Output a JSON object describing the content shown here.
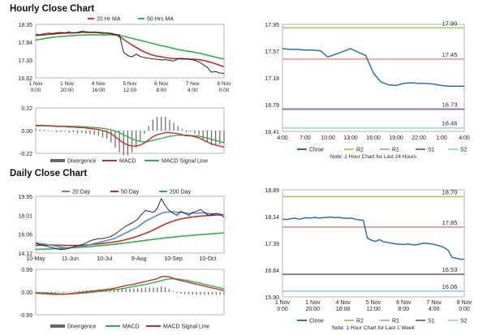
{
  "titles": {
    "hourly": "Hourly Close Chart",
    "daily": "Daily Close Chart"
  },
  "chart_data": [
    {
      "id": "hourly_price",
      "type": "line",
      "legend": [
        "20 Hr MA",
        "50 Hrs MA"
      ],
      "y_ticks": [
        "18.35",
        "17.84",
        "17.33",
        "16.82"
      ],
      "ylim": [
        16.82,
        18.35
      ],
      "x_ticks": [
        [
          "1 Nov",
          "0:00"
        ],
        [
          "1 Nov",
          "20:00"
        ],
        [
          "4 Nov",
          "16:00"
        ],
        [
          "5 Nov",
          "12:00"
        ],
        [
          "6 Nov",
          "8:00"
        ],
        [
          "7 Nov",
          "4:00"
        ],
        [
          "8 Nov",
          "0:00"
        ]
      ],
      "series": [
        {
          "name": "Close",
          "values": [
            18.07,
            18.05,
            18.08,
            18.1,
            18.09,
            18.11,
            18.12,
            18.11,
            18.13,
            18.1,
            18.12,
            18.15,
            18.14,
            18.12,
            18.13,
            18.11,
            18.09,
            18.1,
            18.08,
            18.06,
            18.05,
            17.55,
            17.46,
            17.42,
            17.5,
            17.43,
            17.4,
            17.38,
            17.36,
            17.35,
            17.33,
            17.34,
            17.32,
            17.3,
            17.37,
            17.38,
            17.36,
            17.35,
            17.32,
            17.28,
            17.2,
            17.12,
            16.98,
            17.0,
            16.96,
            16.95
          ]
        },
        {
          "name": "20 Hr MA",
          "values": [
            18.03,
            18.04,
            18.05,
            18.06,
            18.07,
            18.08,
            18.09,
            18.1,
            18.1,
            18.11,
            18.11,
            18.12,
            18.12,
            18.12,
            18.12,
            18.12,
            18.11,
            18.1,
            18.09,
            18.06,
            18.0,
            17.92,
            17.84,
            17.76,
            17.69,
            17.62,
            17.56,
            17.51,
            17.47,
            17.44,
            17.42,
            17.4,
            17.38,
            17.37,
            17.37,
            17.36,
            17.36,
            17.35,
            17.35,
            17.34,
            17.32,
            17.29,
            17.26,
            17.22,
            17.18,
            17.14
          ]
        },
        {
          "name": "50 Hrs MA",
          "values": [
            17.9,
            17.92,
            17.94,
            17.96,
            17.98,
            17.99,
            18.0,
            18.01,
            18.02,
            18.03,
            18.04,
            18.04,
            18.05,
            18.05,
            18.05,
            18.05,
            18.05,
            18.05,
            18.05,
            18.04,
            18.03,
            18.01,
            17.98,
            17.95,
            17.92,
            17.89,
            17.86,
            17.83,
            17.8,
            17.77,
            17.74,
            17.72,
            17.69,
            17.66,
            17.63,
            17.61,
            17.59,
            17.57,
            17.55,
            17.53,
            17.5,
            17.47,
            17.44,
            17.41,
            17.38,
            17.36
          ]
        }
      ]
    },
    {
      "id": "hourly_macd",
      "type": "line",
      "legend": [
        "Divergence",
        "MACD",
        "MACD Signal Line"
      ],
      "y_ticks": [
        "0.22",
        "0.00",
        "-0.22"
      ],
      "ylim": [
        -0.22,
        0.22
      ],
      "series": [
        {
          "name": "MACD",
          "values": [
            0.05,
            0.05,
            0.05,
            0.045,
            0.045,
            0.04,
            0.04,
            0.04,
            0.035,
            0.035,
            0.03,
            0.03,
            0.025,
            0.02,
            0.015,
            0.01,
            0.0,
            -0.01,
            -0.03,
            -0.06,
            -0.09,
            -0.12,
            -0.14,
            -0.15,
            -0.15,
            -0.14,
            -0.12,
            -0.09,
            -0.06,
            -0.04,
            -0.03,
            -0.02,
            -0.02,
            -0.025,
            -0.03,
            -0.04,
            -0.05,
            -0.05,
            -0.06,
            -0.07,
            -0.09,
            -0.11,
            -0.13,
            -0.14,
            -0.15,
            -0.16
          ]
        },
        {
          "name": "MACD Signal Line",
          "values": [
            0.045,
            0.046,
            0.047,
            0.047,
            0.046,
            0.045,
            0.044,
            0.043,
            0.042,
            0.04,
            0.039,
            0.037,
            0.035,
            0.032,
            0.029,
            0.026,
            0.022,
            0.016,
            0.008,
            -0.005,
            -0.02,
            -0.04,
            -0.06,
            -0.08,
            -0.095,
            -0.105,
            -0.11,
            -0.105,
            -0.095,
            -0.085,
            -0.075,
            -0.065,
            -0.055,
            -0.05,
            -0.045,
            -0.045,
            -0.045,
            -0.047,
            -0.05,
            -0.055,
            -0.062,
            -0.072,
            -0.083,
            -0.095,
            -0.105,
            -0.12
          ]
        }
      ]
    },
    {
      "id": "hourly_last24",
      "type": "line",
      "legend": [
        "Close",
        "R2",
        "R1",
        "S1",
        "S2"
      ],
      "y_ticks": [
        "17.95",
        "17.57",
        "17.18",
        "16.79",
        "16.41"
      ],
      "ylim": [
        16.41,
        17.95
      ],
      "x_ticks": [
        "4:00",
        "7:00",
        "10:00",
        "13:00",
        "16:00",
        "19:00",
        "22:00",
        "1:00",
        "4:00"
      ],
      "levels": [
        {
          "name": "R2",
          "value": 17.9,
          "label": "17.90",
          "color": "#a9d06b"
        },
        {
          "name": "R1",
          "value": 17.45,
          "label": "17.45",
          "color": "#e8a0a0"
        },
        {
          "name": "S1",
          "value": 16.73,
          "label": "16.73",
          "color": "#8a6f9e"
        },
        {
          "name": "S2",
          "value": 16.46,
          "label": "16.46",
          "color": "#9fd6e8"
        }
      ],
      "series": [
        {
          "name": "Close",
          "values": [
            17.6,
            17.59,
            17.59,
            17.58,
            17.58,
            17.57,
            17.48,
            17.52,
            17.56,
            17.6,
            17.55,
            17.5,
            17.25,
            17.12,
            17.08,
            17.07,
            17.1,
            17.11,
            17.1,
            17.1,
            17.09,
            17.07,
            17.06,
            17.06,
            17.06
          ]
        }
      ],
      "note": "Note: 1 Hour Chart for Last 24 Hours"
    },
    {
      "id": "daily_price",
      "type": "line",
      "legend": [
        "20 Day",
        "50 Day",
        "200 Day"
      ],
      "y_ticks": [
        "19.95",
        "18.01",
        "16.06",
        "14.12"
      ],
      "ylim": [
        14.12,
        19.95
      ],
      "x_ticks": [
        "10-May",
        "11-Jun",
        "10-Jul",
        "9-Aug",
        "10-Sep",
        "10-Oct"
      ],
      "series": [
        {
          "name": "Close",
          "values": [
            15.1,
            15.0,
            14.9,
            14.8,
            14.7,
            14.6,
            14.5,
            14.5,
            14.55,
            14.7,
            14.8,
            14.9,
            15.0,
            15.2,
            15.4,
            15.5,
            15.6,
            15.6,
            15.7,
            15.8,
            16.0,
            16.3,
            16.6,
            16.9,
            17.1,
            17.3,
            17.6,
            18.1,
            18.5,
            18.4,
            18.3,
            18.7,
            19.7,
            19.0,
            18.5,
            18.2,
            18.0,
            18.4,
            18.2,
            18.0,
            18.3,
            18.4,
            18.6,
            18.3,
            18.0,
            18.1,
            18.2,
            18.1,
            17.8
          ]
        },
        {
          "name": "20 Day",
          "values": [
            15.2,
            15.1,
            15.05,
            15.0,
            14.9,
            14.85,
            14.75,
            14.7,
            14.65,
            14.65,
            14.7,
            14.75,
            14.8,
            14.9,
            15.0,
            15.1,
            15.2,
            15.3,
            15.4,
            15.5,
            15.6,
            15.8,
            16.0,
            16.2,
            16.4,
            16.6,
            16.8,
            17.1,
            17.4,
            17.6,
            17.8,
            18.0,
            18.2,
            18.3,
            18.35,
            18.35,
            18.3,
            18.3,
            18.25,
            18.2,
            18.2,
            18.2,
            18.25,
            18.25,
            18.2,
            18.15,
            18.1,
            18.1,
            18.05
          ]
        },
        {
          "name": "50 Day",
          "values": [
            14.9,
            14.92,
            14.94,
            14.95,
            14.95,
            14.94,
            14.93,
            14.92,
            14.9,
            14.9,
            14.9,
            14.9,
            14.92,
            14.95,
            14.98,
            15.02,
            15.06,
            15.1,
            15.15,
            15.2,
            15.26,
            15.33,
            15.4,
            15.5,
            15.6,
            15.72,
            15.85,
            16.0,
            16.15,
            16.3,
            16.5,
            16.7,
            16.9,
            17.1,
            17.25,
            17.4,
            17.52,
            17.62,
            17.7,
            17.77,
            17.83,
            17.88,
            17.92,
            17.96,
            17.98,
            18.0,
            18.02,
            18.03,
            18.05
          ]
        },
        {
          "name": "200 Day",
          "values": [
            14.5,
            14.51,
            14.52,
            14.53,
            14.55,
            14.57,
            14.59,
            14.61,
            14.63,
            14.65,
            14.67,
            14.7,
            14.73,
            14.76,
            14.79,
            14.82,
            14.86,
            14.9,
            14.94,
            14.98,
            15.02,
            15.07,
            15.12,
            15.17,
            15.22,
            15.27,
            15.32,
            15.38,
            15.43,
            15.48,
            15.53,
            15.58,
            15.63,
            15.68,
            15.72,
            15.76,
            15.8,
            15.84,
            15.88,
            15.92,
            15.95,
            15.98,
            16.01,
            16.04,
            16.07,
            16.1,
            16.13,
            16.16,
            16.2
          ]
        }
      ]
    },
    {
      "id": "daily_macd",
      "type": "line",
      "legend": [
        "Divergence",
        "MACD",
        "MACD Signal Line"
      ],
      "y_ticks": [
        "0.99",
        "0.00",
        "-0.99"
      ],
      "ylim": [
        -0.99,
        0.99
      ],
      "series": [
        {
          "name": "MACD",
          "values": [
            -0.05,
            -0.06,
            -0.07,
            -0.08,
            -0.09,
            -0.1,
            -0.1,
            -0.1,
            -0.09,
            -0.07,
            -0.05,
            -0.03,
            -0.01,
            0.01,
            0.03,
            0.05,
            0.07,
            0.09,
            0.11,
            0.13,
            0.16,
            0.2,
            0.24,
            0.28,
            0.31,
            0.34,
            0.38,
            0.42,
            0.46,
            0.5,
            0.54,
            0.58,
            0.66,
            0.68,
            0.66,
            0.6,
            0.54,
            0.5,
            0.46,
            0.42,
            0.38,
            0.34,
            0.3,
            0.26,
            0.22,
            0.18,
            0.14,
            0.1,
            0.06
          ]
        },
        {
          "name": "MACD Signal Line",
          "values": [
            -0.02,
            -0.03,
            -0.04,
            -0.05,
            -0.06,
            -0.07,
            -0.08,
            -0.08,
            -0.08,
            -0.08,
            -0.07,
            -0.06,
            -0.05,
            -0.04,
            -0.02,
            0.0,
            0.02,
            0.04,
            0.06,
            0.08,
            0.1,
            0.12,
            0.15,
            0.18,
            0.21,
            0.24,
            0.27,
            0.3,
            0.33,
            0.37,
            0.41,
            0.45,
            0.5,
            0.54,
            0.57,
            0.58,
            0.57,
            0.55,
            0.52,
            0.49,
            0.45,
            0.42,
            0.38,
            0.34,
            0.3,
            0.26,
            0.22,
            0.18,
            0.14
          ]
        }
      ]
    },
    {
      "id": "daily_lastweek",
      "type": "line",
      "legend": [
        "Close",
        "R2",
        "R1",
        "S1",
        "S2"
      ],
      "y_ticks": [
        "18.89",
        "18.14",
        "17.39",
        "16.64",
        "15.90"
      ],
      "ylim": [
        15.9,
        18.89
      ],
      "x_ticks": [
        [
          "1 Nov",
          "0:00"
        ],
        [
          "1 Nov",
          "20:00"
        ],
        [
          "4 Nov",
          "16:00"
        ],
        [
          "5 Nov",
          "12:00"
        ],
        [
          "6 Nov",
          "8:00"
        ],
        [
          "7 Nov",
          "4:00"
        ],
        [
          "8 Nov",
          "0:00"
        ]
      ],
      "levels": [
        {
          "name": "R2",
          "value": 18.7,
          "label": "18.70",
          "color": "#a9d06b"
        },
        {
          "name": "R1",
          "value": 17.85,
          "label": "17.85",
          "color": "#e8a0a0"
        },
        {
          "name": "S1",
          "value": 16.53,
          "label": "16.53",
          "color": "#8a6f9e"
        },
        {
          "name": "S2",
          "value": 16.06,
          "label": "16.06",
          "color": "#9fd6e8"
        }
      ],
      "series": [
        {
          "name": "Close",
          "values": [
            18.07,
            18.06,
            18.08,
            18.1,
            18.07,
            18.09,
            18.11,
            18.1,
            18.12,
            18.1,
            18.11,
            18.12,
            18.13,
            18.11,
            18.12,
            18.1,
            18.09,
            18.1,
            18.07,
            18.05,
            18.04,
            17.55,
            17.48,
            17.45,
            17.5,
            17.44,
            17.42,
            17.4,
            17.38,
            17.37,
            17.36,
            17.38,
            17.36,
            17.35,
            17.38,
            17.4,
            17.39,
            17.38,
            17.35,
            17.32,
            17.28,
            17.2,
            17.0,
            16.98,
            16.95,
            16.95
          ]
        }
      ],
      "note": "Note: 1 Hour Chart for Last 1 Week"
    }
  ]
}
